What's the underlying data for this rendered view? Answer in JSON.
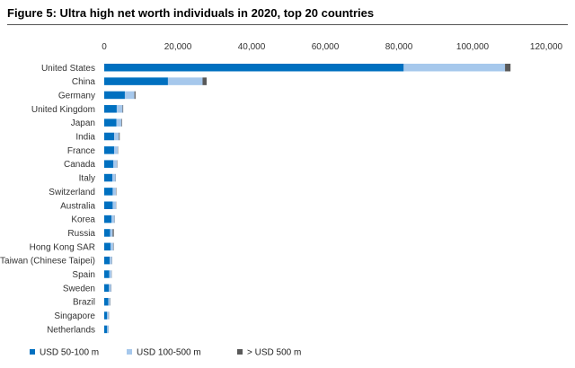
{
  "chart_data": {
    "type": "bar",
    "orientation": "horizontal",
    "stacked": true,
    "title": "Figure 5: Ultra high net worth individuals in 2020, top 20 countries",
    "xlabel": "",
    "ylabel": "",
    "xlim": [
      0,
      120000
    ],
    "x_ticks": [
      "0",
      "20,000",
      "40,000",
      "60,000",
      "80,000",
      "100,000",
      "120,000"
    ],
    "x_tick_values": [
      0,
      20000,
      40000,
      60000,
      80000,
      100000,
      120000
    ],
    "x_axis_position": "top",
    "grid": false,
    "legend_position": "bottom-left",
    "categories": [
      "United States",
      "China",
      "Germany",
      "United Kingdom",
      "Japan",
      "India",
      "France",
      "Canada",
      "Italy",
      "Switzerland",
      "Australia",
      "Korea",
      "Russia",
      "Hong Kong SAR",
      "Taiwan (Chinese Taipei)",
      "Spain",
      "Sweden",
      "Brazil",
      "Singapore",
      "Netherlands"
    ],
    "series": [
      {
        "name": "USD 50-100 m",
        "color": "#0070c0",
        "values": [
          81300,
          17300,
          5600,
          3400,
          3300,
          2700,
          2700,
          2500,
          2200,
          2300,
          2300,
          2000,
          1600,
          1700,
          1500,
          1400,
          1300,
          1100,
          800,
          800
        ]
      },
      {
        "name": "USD 100-500 m",
        "color": "#a6c8ec",
        "values": [
          27500,
          9400,
          2600,
          1600,
          1400,
          1300,
          1000,
          1000,
          900,
          900,
          900,
          800,
          700,
          800,
          600,
          600,
          600,
          500,
          400,
          400
        ]
      },
      {
        "name": "> USD 500 m",
        "color": "#595959",
        "values": [
          1500,
          1100,
          300,
          150,
          150,
          200,
          80,
          80,
          60,
          100,
          60,
          60,
          300,
          100,
          60,
          50,
          60,
          80,
          80,
          30
        ]
      }
    ]
  }
}
